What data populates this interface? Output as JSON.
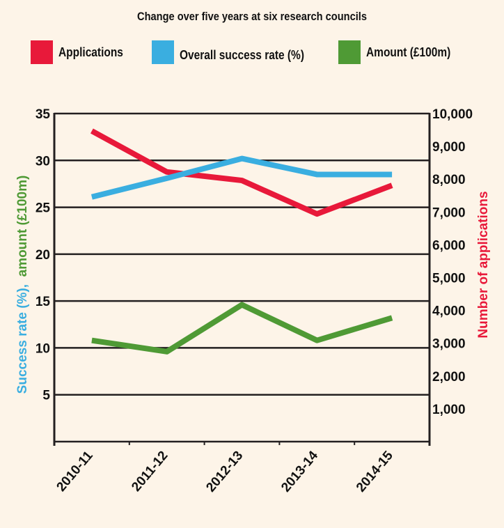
{
  "chart_data": {
    "type": "line",
    "title": "Change over five years at six research councils",
    "categories": [
      "2010-11",
      "2011-12",
      "2012-13",
      "2013-14",
      "2014-15"
    ],
    "series": [
      {
        "name": "Applications",
        "axis": "right",
        "color": "#e8193a",
        "values": [
          9470,
          8220,
          7960,
          6940,
          7810
        ]
      },
      {
        "name": "Overall success rate (%)",
        "axis": "left",
        "color": "#3aaee0",
        "values": [
          26.1,
          28.1,
          30.2,
          28.5,
          28.5
        ]
      },
      {
        "name": "Amount (£100m)",
        "axis": "left",
        "color": "#4f9a35",
        "values": [
          10.8,
          9.6,
          14.6,
          10.8,
          13.2
        ]
      }
    ],
    "left_axis": {
      "label_parts": [
        {
          "text": "Success rate (%),",
          "color": "#3aaee0"
        },
        {
          "text": "amount (£100m)",
          "color": "#4f9a35"
        }
      ],
      "ylim": [
        0,
        35
      ],
      "ticks": [
        5,
        10,
        15,
        20,
        25,
        30,
        35
      ],
      "tick_labels": [
        "5",
        "10",
        "15",
        "20",
        "25",
        "30",
        "35"
      ]
    },
    "right_axis": {
      "label": "Number of applications",
      "label_color": "#e8193a",
      "ylim": [
        0,
        10000
      ],
      "ticks": [
        1000,
        2000,
        3000,
        4000,
        5000,
        6000,
        7000,
        8000,
        9000,
        10000
      ],
      "tick_labels": [
        "1,000",
        "2,000",
        "3,000",
        "4,000",
        "5,000",
        "6,000",
        "7,000",
        "8,000",
        "9,000",
        "10,000"
      ]
    },
    "gridlines": [
      0,
      5,
      10,
      15,
      20,
      25,
      30,
      35
    ],
    "grid": true,
    "legend_position": "top"
  },
  "legend": [
    {
      "label": "Applications",
      "color": "#e8193a"
    },
    {
      "label": "Overall success rate (%)",
      "color": "#3aaee0"
    },
    {
      "label": "Amount (£100m)",
      "color": "#4f9a35"
    }
  ]
}
